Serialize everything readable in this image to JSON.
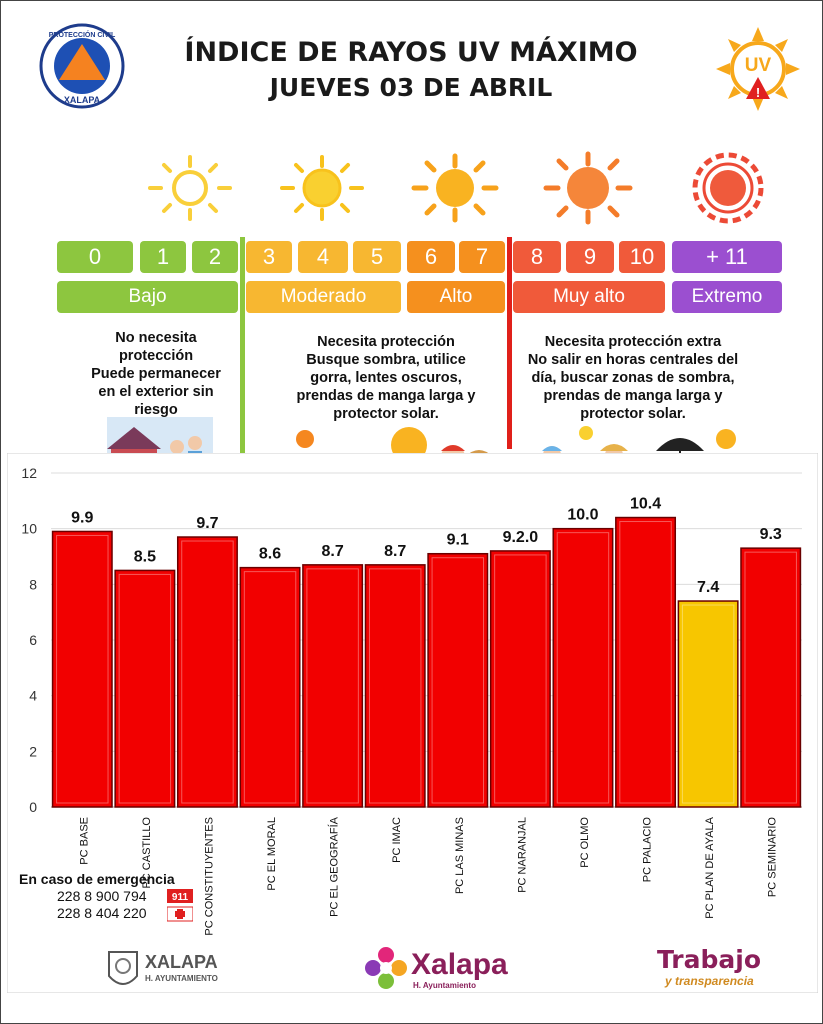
{
  "header": {
    "title_line1": "ÍNDICE DE RAYOS UV MÁXIMO",
    "title_line2": "JUEVES 03 DE ABRIL",
    "badge_ring_text": "PROTECCIÓN CIVIL",
    "badge_bottom_text": "XALAPA",
    "uv_icon_text": "UV",
    "uv_warning_mark": "!"
  },
  "scale": {
    "numbers": [
      {
        "label": "0",
        "color": "#8dc63f"
      },
      {
        "label": "1",
        "color": "#8dc63f"
      },
      {
        "label": "2",
        "color": "#8dc63f"
      },
      {
        "label": "3",
        "color": "#f7b731"
      },
      {
        "label": "4",
        "color": "#f7b731"
      },
      {
        "label": "5",
        "color": "#f7b731"
      },
      {
        "label": "6",
        "color": "#f5901e"
      },
      {
        "label": "7",
        "color": "#f5901e"
      },
      {
        "label": "8",
        "color": "#f05a3a"
      },
      {
        "label": "9",
        "color": "#f05a3a"
      },
      {
        "label": "10",
        "color": "#f05a3a"
      },
      {
        "label": "+ 11",
        "color": "#9b4fd0"
      }
    ],
    "levels": [
      {
        "label": "Bajo",
        "color": "#8dc63f"
      },
      {
        "label": "Moderado",
        "color": "#f7b731"
      },
      {
        "label": "Alto",
        "color": "#f5901e"
      },
      {
        "label": "Muy alto",
        "color": "#f05a3a"
      },
      {
        "label": "Extremo",
        "color": "#9b4fd0"
      }
    ],
    "divider_colors": [
      "#8dc63f",
      "#e0201a"
    ]
  },
  "advice": {
    "low": [
      "No necesita",
      "protección",
      "Puede permanecer",
      "en el exterior sin",
      "riesgo"
    ],
    "moderate": [
      "Necesita protección",
      "Busque sombra, utilice",
      "gorra, lentes oscuros,",
      "prendas de manga larga y",
      "protector solar."
    ],
    "high": [
      "Necesita protección extra",
      "No salir en horas centrales del",
      "día, buscar zonas de sombra,",
      "prendas de manga larga y",
      "protector solar."
    ]
  },
  "chart_data": {
    "type": "bar",
    "categories": [
      "PC BASE",
      "PC CASTILLO",
      "PC CONSTITUYENTES",
      "PC EL MORAL",
      "PC EL GEOGRAFÍA",
      "PC IMAC",
      "PC LAS MINAS",
      "PC NARANJAL",
      "PC OLMO",
      "PC PALACIO",
      "PC PLAN DE AYALA",
      "PC SEMINARIO"
    ],
    "values": [
      9.9,
      8.5,
      9.7,
      8.6,
      8.7,
      8.7,
      9.1,
      9.2,
      10.0,
      10.4,
      7.4,
      9.3
    ],
    "data_labels": [
      "9.9",
      "8.5",
      "9.7",
      "8.6",
      "8.7",
      "8.7",
      "9.1",
      "9.2.0",
      "10.0",
      "10.4",
      "7.4",
      "9.3"
    ],
    "bar_colors": [
      "#f20000",
      "#f20000",
      "#f20000",
      "#f20000",
      "#f20000",
      "#f20000",
      "#f20000",
      "#f20000",
      "#f20000",
      "#f20000",
      "#f7c600",
      "#f20000"
    ],
    "yticks": [
      "0",
      "2",
      "4",
      "6",
      "8",
      "10",
      "12"
    ],
    "ylim": [
      0,
      12
    ],
    "grid": true,
    "title": "",
    "xlabel": "",
    "ylabel": ""
  },
  "emergency": {
    "heading": "En caso de emergencia",
    "phones": [
      "228 8 900 794",
      "228 8 404 220"
    ],
    "badge_text": "911"
  },
  "footer": {
    "logo1_name": "XALAPA",
    "logo1_sub": "H. AYUNTAMIENTO",
    "logo2_name": "Xalapa",
    "logo2_sub": "H. Ayuntamiento",
    "logo3_line1": "Trabajo",
    "logo3_line2": "y transparencia"
  }
}
